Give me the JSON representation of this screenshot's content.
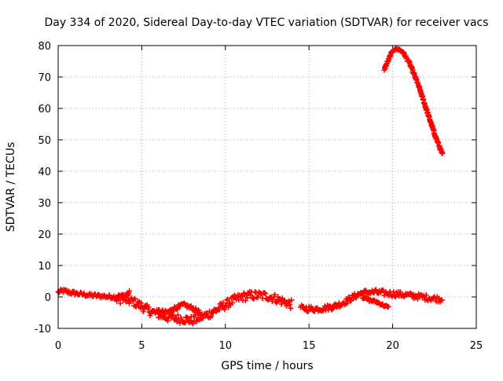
{
  "chart_data": {
    "type": "scatter",
    "title": "Day 334 of 2020, Sidereal Day-to-day VTEC variation (SDTVAR) for receiver vacs",
    "xlabel": "GPS time / hours",
    "ylabel": "SDTVAR / TECUs",
    "xlim": [
      0,
      25
    ],
    "ylim": [
      -10,
      80
    ],
    "xticks": [
      0,
      5,
      10,
      15,
      20,
      25
    ],
    "yticks": [
      -10,
      0,
      10,
      20,
      30,
      40,
      50,
      60,
      70,
      80
    ],
    "grid": true,
    "marker": "+",
    "series": [
      {
        "name": "SDTVAR",
        "color": "#ff0000",
        "segments": [
          {
            "x": [
              0.0,
              0.3,
              0.6,
              1.0,
              1.5,
              2.0,
              2.5,
              3.0,
              3.5,
              4.0,
              4.3
            ],
            "y": [
              1.5,
              2.0,
              1.5,
              1.2,
              0.8,
              0.5,
              0.3,
              0.1,
              0.0,
              0.5,
              1.5
            ],
            "spread": 1.2
          },
          {
            "x": [
              3.5,
              4.0,
              4.5,
              5.0,
              5.5,
              6.0,
              6.5,
              7.0,
              7.5,
              8.0,
              8.5,
              9.0,
              9.5,
              10.0,
              10.5,
              11.0,
              11.5,
              12.0,
              12.5,
              13.0,
              13.5,
              14.0
            ],
            "y": [
              -0.5,
              -0.8,
              -1.5,
              -3.0,
              -4.5,
              -5.5,
              -6.5,
              -6.8,
              -7.0,
              -7.5,
              -6.5,
              -5.5,
              -4.0,
              -2.5,
              -1.0,
              0.0,
              0.5,
              0.5,
              0.3,
              -0.5,
              -1.5,
              -2.5
            ],
            "spread": 2.8
          },
          {
            "x": [
              6.0,
              6.5,
              7.0,
              7.5,
              8.0,
              8.5
            ],
            "y": [
              -4.5,
              -5.0,
              -3.5,
              -2.5,
              -3.5,
              -5.0
            ],
            "spread": 1.2
          },
          {
            "x": [
              14.5,
              15.0,
              15.5,
              16.0,
              16.5,
              17.0,
              17.5,
              18.0,
              18.5,
              19.0,
              19.5,
              20.0,
              20.5,
              21.0,
              21.5,
              22.0,
              22.5,
              23.0
            ],
            "y": [
              -3.5,
              -3.8,
              -3.8,
              -3.5,
              -3.0,
              -2.0,
              -0.5,
              1.0,
              1.5,
              1.5,
              1.2,
              1.0,
              0.8,
              0.5,
              0.2,
              -0.2,
              -0.5,
              -0.8
            ],
            "spread": 1.8
          },
          {
            "x": [
              18.2,
              18.6,
              19.0,
              19.4,
              19.8
            ],
            "y": [
              0.0,
              -1.0,
              -1.5,
              -2.5,
              -3.5
            ],
            "spread": 0.8
          },
          {
            "x": [
              19.5,
              19.8,
              20.0,
              20.3,
              20.6,
              21.0,
              21.5,
              22.0,
              22.5,
              23.0
            ],
            "y": [
              72.5,
              76.0,
              78.5,
              79.0,
              78.0,
              74.5,
              68.0,
              60.0,
              52.0,
              45.0
            ],
            "spread": 0.9
          }
        ]
      }
    ]
  }
}
